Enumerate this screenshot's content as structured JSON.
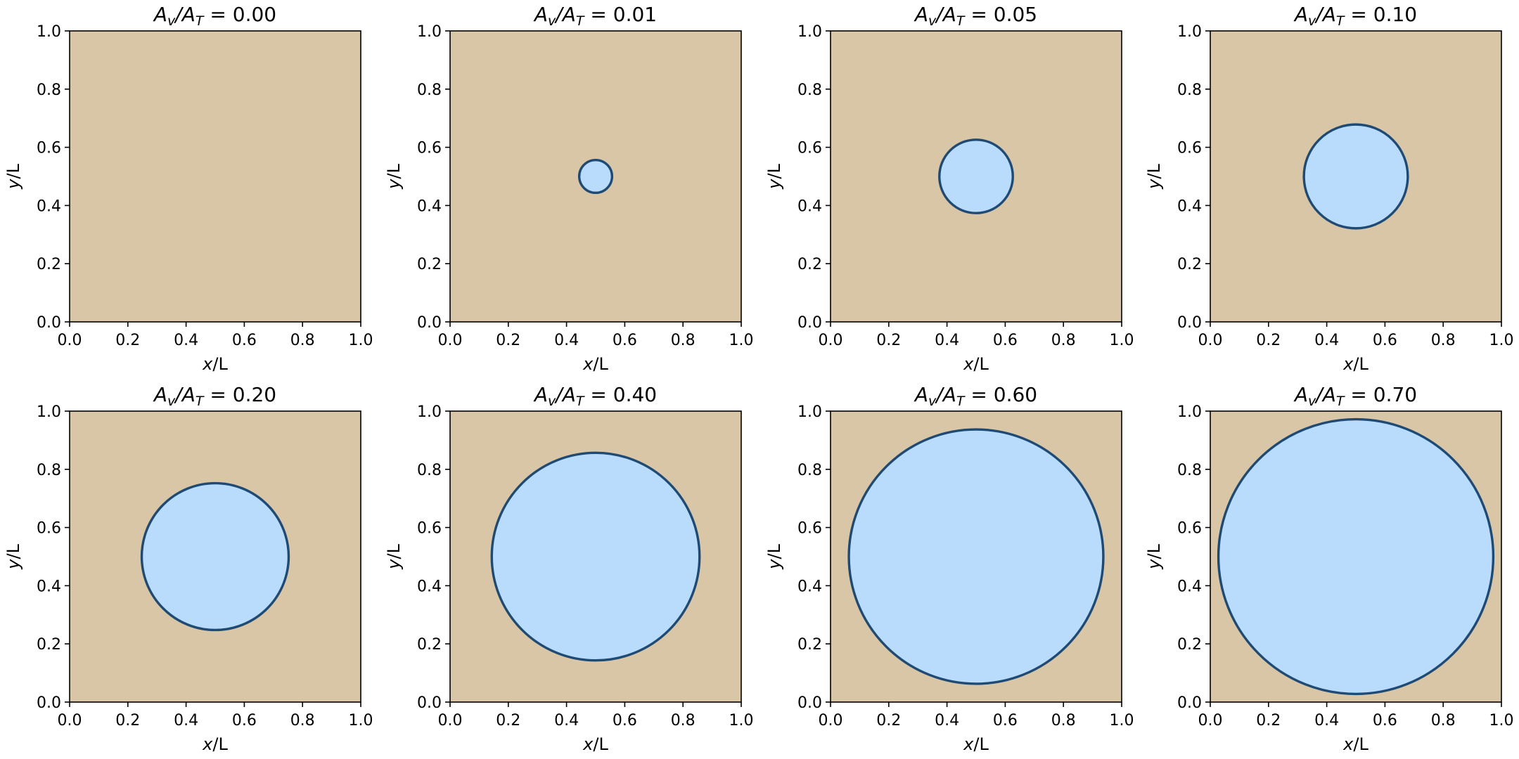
{
  "chart_data": [
    {
      "type": "area",
      "title": "0.00",
      "title_prefix": "A",
      "title_sub1": "v",
      "title_mid": "/A",
      "title_sub2": "T",
      "title_eq": " = ",
      "xlabel": "x",
      "ylabel": "y",
      "label_suffix": "/L",
      "xlim": [
        0,
        1
      ],
      "ylim": [
        0,
        1
      ],
      "xticks": [
        "0.0",
        "0.2",
        "0.4",
        "0.6",
        "0.8",
        "1.0"
      ],
      "yticks": [
        "0.0",
        "0.2",
        "0.4",
        "0.6",
        "0.8",
        "1.0"
      ],
      "circle": {
        "cx": 0.5,
        "cy": 0.5,
        "area_fraction": 0.0
      }
    },
    {
      "type": "area",
      "title": "0.01",
      "title_prefix": "A",
      "title_sub1": "v",
      "title_mid": "/A",
      "title_sub2": "T",
      "title_eq": " = ",
      "xlabel": "x",
      "ylabel": "y",
      "label_suffix": "/L",
      "xlim": [
        0,
        1
      ],
      "ylim": [
        0,
        1
      ],
      "xticks": [
        "0.0",
        "0.2",
        "0.4",
        "0.6",
        "0.8",
        "1.0"
      ],
      "yticks": [
        "0.0",
        "0.2",
        "0.4",
        "0.6",
        "0.8",
        "1.0"
      ],
      "circle": {
        "cx": 0.5,
        "cy": 0.5,
        "area_fraction": 0.01
      }
    },
    {
      "type": "area",
      "title": "0.05",
      "title_prefix": "A",
      "title_sub1": "v",
      "title_mid": "/A",
      "title_sub2": "T",
      "title_eq": " = ",
      "xlabel": "x",
      "ylabel": "y",
      "label_suffix": "/L",
      "xlim": [
        0,
        1
      ],
      "ylim": [
        0,
        1
      ],
      "xticks": [
        "0.0",
        "0.2",
        "0.4",
        "0.6",
        "0.8",
        "1.0"
      ],
      "yticks": [
        "0.0",
        "0.2",
        "0.4",
        "0.6",
        "0.8",
        "1.0"
      ],
      "circle": {
        "cx": 0.5,
        "cy": 0.5,
        "area_fraction": 0.05
      }
    },
    {
      "type": "area",
      "title": "0.10",
      "title_prefix": "A",
      "title_sub1": "v",
      "title_mid": "/A",
      "title_sub2": "T",
      "title_eq": " = ",
      "xlabel": "x",
      "ylabel": "y",
      "label_suffix": "/L",
      "xlim": [
        0,
        1
      ],
      "ylim": [
        0,
        1
      ],
      "xticks": [
        "0.0",
        "0.2",
        "0.4",
        "0.6",
        "0.8",
        "1.0"
      ],
      "yticks": [
        "0.0",
        "0.2",
        "0.4",
        "0.6",
        "0.8",
        "1.0"
      ],
      "circle": {
        "cx": 0.5,
        "cy": 0.5,
        "area_fraction": 0.1
      }
    },
    {
      "type": "area",
      "title": "0.20",
      "title_prefix": "A",
      "title_sub1": "v",
      "title_mid": "/A",
      "title_sub2": "T",
      "title_eq": " = ",
      "xlabel": "x",
      "ylabel": "y",
      "label_suffix": "/L",
      "xlim": [
        0,
        1
      ],
      "ylim": [
        0,
        1
      ],
      "xticks": [
        "0.0",
        "0.2",
        "0.4",
        "0.6",
        "0.8",
        "1.0"
      ],
      "yticks": [
        "0.0",
        "0.2",
        "0.4",
        "0.6",
        "0.8",
        "1.0"
      ],
      "circle": {
        "cx": 0.5,
        "cy": 0.5,
        "area_fraction": 0.2
      }
    },
    {
      "type": "area",
      "title": "0.40",
      "title_prefix": "A",
      "title_sub1": "v",
      "title_mid": "/A",
      "title_sub2": "T",
      "title_eq": " = ",
      "xlabel": "x",
      "ylabel": "y",
      "label_suffix": "/L",
      "xlim": [
        0,
        1
      ],
      "ylim": [
        0,
        1
      ],
      "xticks": [
        "0.0",
        "0.2",
        "0.4",
        "0.6",
        "0.8",
        "1.0"
      ],
      "yticks": [
        "0.0",
        "0.2",
        "0.4",
        "0.6",
        "0.8",
        "1.0"
      ],
      "circle": {
        "cx": 0.5,
        "cy": 0.5,
        "area_fraction": 0.4
      }
    },
    {
      "type": "area",
      "title": "0.60",
      "title_prefix": "A",
      "title_sub1": "v",
      "title_mid": "/A",
      "title_sub2": "T",
      "title_eq": " = ",
      "xlabel": "x",
      "ylabel": "y",
      "label_suffix": "/L",
      "xlim": [
        0,
        1
      ],
      "ylim": [
        0,
        1
      ],
      "xticks": [
        "0.0",
        "0.2",
        "0.4",
        "0.6",
        "0.8",
        "1.0"
      ],
      "yticks": [
        "0.0",
        "0.2",
        "0.4",
        "0.6",
        "0.8",
        "1.0"
      ],
      "circle": {
        "cx": 0.5,
        "cy": 0.5,
        "area_fraction": 0.6
      }
    },
    {
      "type": "area",
      "title": "0.70",
      "title_prefix": "A",
      "title_sub1": "v",
      "title_mid": "/A",
      "title_sub2": "T",
      "title_eq": " = ",
      "xlabel": "x",
      "ylabel": "y",
      "label_suffix": "/L",
      "xlim": [
        0,
        1
      ],
      "ylim": [
        0,
        1
      ],
      "xticks": [
        "0.0",
        "0.2",
        "0.4",
        "0.6",
        "0.8",
        "1.0"
      ],
      "yticks": [
        "0.0",
        "0.2",
        "0.4",
        "0.6",
        "0.8",
        "1.0"
      ],
      "circle": {
        "cx": 0.5,
        "cy": 0.5,
        "area_fraction": 0.7
      }
    }
  ],
  "colors": {
    "background": "#d9c6a6",
    "circle_fill": "#badcfc",
    "circle_edge": "#1f4a73",
    "frame": "#000000"
  }
}
